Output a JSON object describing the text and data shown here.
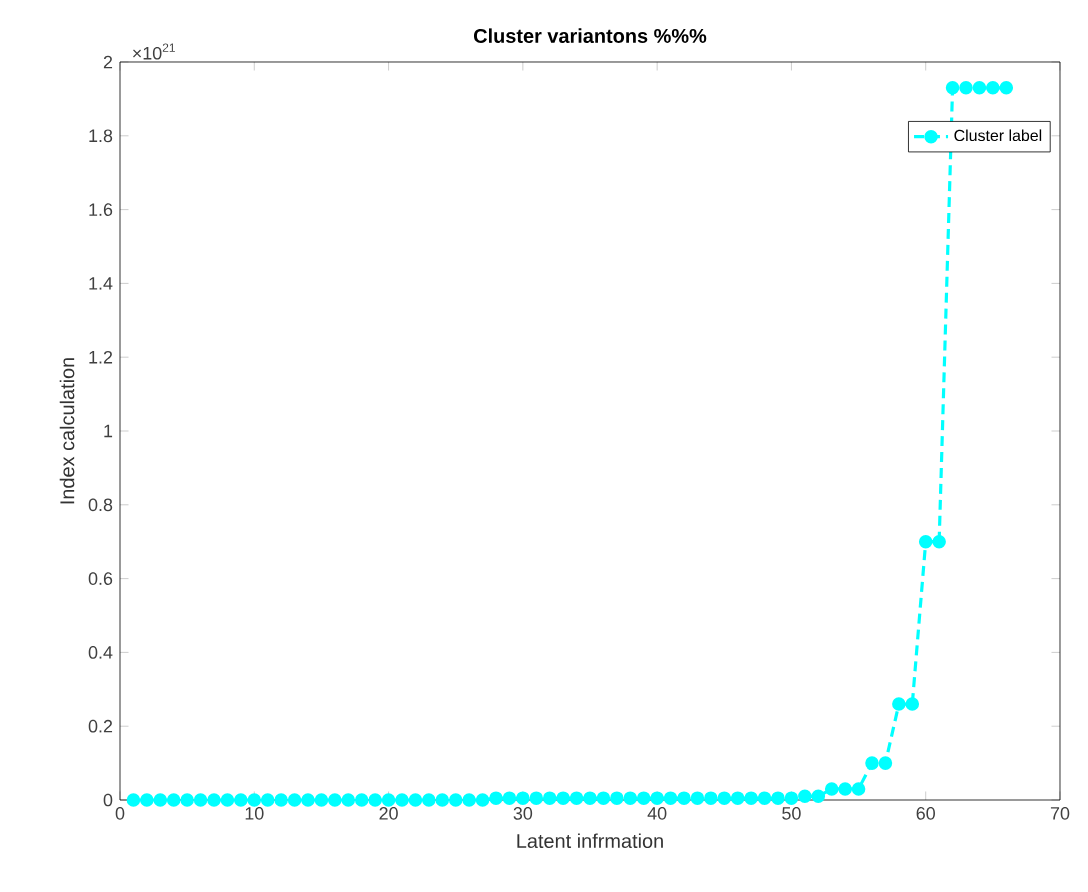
{
  "chart_data": {
    "type": "line",
    "title": "Cluster variantons %%%",
    "xlabel": "Latent infrmation",
    "ylabel": "Index calculation",
    "annotations": [
      "×10$^{21}$"
    ],
    "x": [
      1,
      2,
      3,
      4,
      5,
      6,
      7,
      8,
      9,
      10,
      11,
      12,
      13,
      14,
      15,
      16,
      17,
      18,
      19,
      20,
      21,
      22,
      23,
      24,
      25,
      26,
      27,
      28,
      29,
      30,
      31,
      32,
      33,
      34,
      35,
      36,
      37,
      38,
      39,
      40,
      41,
      42,
      43,
      44,
      45,
      46,
      47,
      48,
      49,
      50,
      51,
      52,
      53,
      54,
      55,
      56,
      57,
      58,
      59,
      60,
      61,
      62,
      63,
      64,
      65,
      66
    ],
    "series": [
      {
        "name": "Cluster label",
        "color": "#00ffff",
        "values": [
          0,
          0,
          0,
          0,
          0,
          0,
          0,
          0,
          0,
          0,
          0,
          0,
          0,
          0,
          0,
          0,
          0,
          0,
          0,
          0,
          0,
          0,
          0,
          0,
          0,
          0,
          0,
          0.005,
          0.005,
          0.005,
          0.005,
          0.005,
          0.005,
          0.005,
          0.005,
          0.005,
          0.005,
          0.005,
          0.005,
          0.005,
          0.005,
          0.005,
          0.005,
          0.005,
          0.005,
          0.005,
          0.005,
          0.005,
          0.005,
          0.005,
          0.01,
          0.01,
          0.03,
          0.03,
          0.03,
          0.1,
          0.1,
          0.26,
          0.26,
          0.7,
          0.7,
          1.93,
          1.93,
          1.93,
          1.93,
          1.93
        ]
      }
    ],
    "xlim": [
      0,
      70
    ],
    "ylim": [
      0,
      2
    ],
    "xticks": [
      0,
      10,
      20,
      30,
      40,
      50,
      60,
      70
    ],
    "yticks": [
      0,
      0.2,
      0.4,
      0.6,
      0.8,
      1,
      1.2,
      1.4,
      1.6,
      1.8,
      2
    ],
    "legend": "top right",
    "marker": "circle",
    "line_style": "dashed"
  }
}
